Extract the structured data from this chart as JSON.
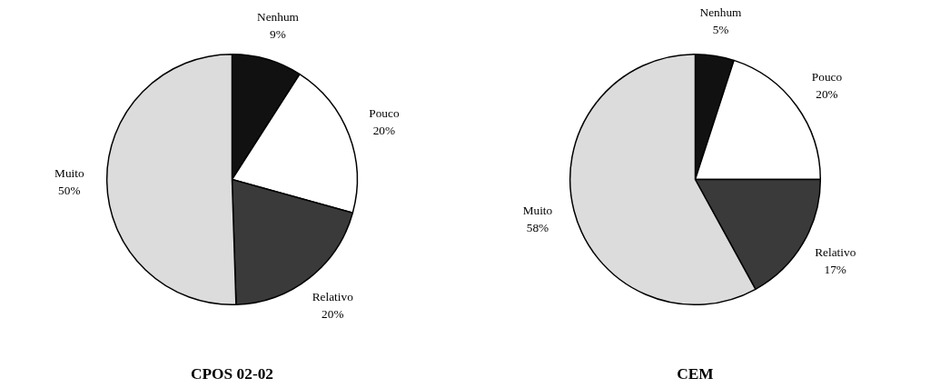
{
  "chart_data": [
    {
      "type": "pie",
      "title": "CPOS 02-02",
      "categories": [
        "Nenhum",
        "Pouco",
        "Relativo",
        "Muito"
      ],
      "values": [
        9,
        20,
        20,
        50
      ],
      "value_labels": [
        "9%",
        "20%",
        "20%",
        "50%"
      ],
      "colors": [
        "#111111",
        "#ffffff",
        "#3a3a3a",
        "#dcdcdc"
      ],
      "legend": false
    },
    {
      "type": "pie",
      "title": "CEM",
      "categories": [
        "Nenhum",
        "Pouco",
        "Relativo",
        "Muito"
      ],
      "values": [
        5,
        20,
        17,
        58
      ],
      "value_labels": [
        "5%",
        "20%",
        "17%",
        "58%"
      ],
      "colors": [
        "#111111",
        "#ffffff",
        "#3a3a3a",
        "#dcdcdc"
      ],
      "legend": false
    }
  ]
}
